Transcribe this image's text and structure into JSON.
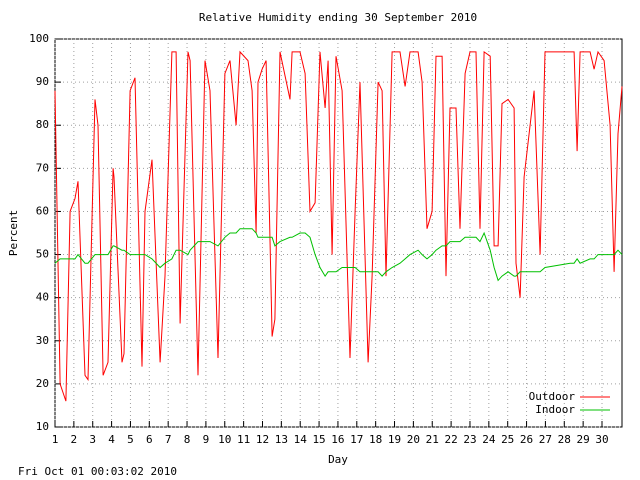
{
  "chart_data": {
    "type": "line",
    "title": "Relative Humidity ending 30 September 2010",
    "x_label": "Day",
    "y_label": "Percent",
    "footer": "Fri Oct 01 00:03:02 2010",
    "xlim": [
      1,
      31.06
    ],
    "ylim": [
      10,
      100
    ],
    "xticks": [
      1,
      2,
      3,
      4,
      5,
      6,
      7,
      8,
      9,
      10,
      11,
      12,
      13,
      14,
      15,
      16,
      17,
      18,
      19,
      20,
      21,
      22,
      23,
      24,
      25,
      26,
      27,
      28,
      29,
      30
    ],
    "yticks": [
      10,
      20,
      30,
      40,
      50,
      60,
      70,
      80,
      90,
      100
    ],
    "grid": true,
    "legend": "bottom-right",
    "x": [
      1.0,
      1.27,
      1.58,
      1.8,
      2.06,
      2.22,
      2.59,
      2.75,
      3.12,
      3.28,
      3.55,
      3.81,
      4.08,
      4.13,
      4.55,
      4.66,
      4.98,
      5.24,
      5.61,
      5.77,
      6.14,
      6.57,
      6.83,
      7.2,
      7.42,
      7.63,
      8.05,
      8.16,
      8.58,
      8.95,
      9.22,
      9.64,
      10.01,
      10.28,
      10.6,
      10.81,
      11.23,
      11.45,
      11.66,
      11.76,
      11.98,
      12.19,
      12.51,
      12.66,
      12.93,
      13.46,
      13.57,
      13.99,
      14.26,
      14.52,
      14.79,
      15.05,
      15.32,
      15.48,
      15.69,
      15.9,
      16.22,
      16.64,
      16.91,
      17.17,
      17.6,
      17.81,
      18.13,
      18.34,
      18.55,
      18.87,
      19.29,
      19.56,
      19.82,
      20.25,
      20.46,
      20.72,
      20.99,
      21.2,
      21.52,
      21.73,
      21.94,
      22.26,
      22.47,
      22.74,
      23.0,
      23.32,
      23.53,
      23.75,
      24.07,
      24.28,
      24.49,
      24.7,
      25.02,
      25.34,
      25.44,
      25.66,
      25.87,
      26.19,
      26.4,
      26.72,
      26.98,
      28.31,
      28.52,
      28.68,
      28.84,
      29.37,
      29.58,
      29.79,
      30.11,
      30.43,
      30.64,
      30.85,
      31.06
    ],
    "series": [
      {
        "name": "Outdoor",
        "color": "#ff0000",
        "values": [
          88,
          20,
          16,
          60,
          63,
          67,
          22,
          21,
          86,
          80,
          22,
          25,
          70,
          68,
          25,
          27,
          88,
          91,
          24,
          60,
          72,
          25,
          45,
          97,
          97,
          34,
          97,
          95,
          22,
          95,
          88,
          26,
          92,
          95,
          80,
          97,
          95,
          88,
          55,
          90,
          93,
          95,
          31,
          35,
          97,
          86,
          97,
          97,
          92,
          60,
          62,
          97,
          84,
          95,
          50,
          96,
          88,
          26,
          60,
          90,
          25,
          45,
          90,
          88,
          45,
          97,
          97,
          89,
          97,
          97,
          90,
          56,
          60,
          96,
          96,
          45,
          84,
          84,
          56,
          92,
          97,
          97,
          56,
          97,
          96,
          52,
          52,
          85,
          86,
          84,
          48,
          40,
          68,
          80,
          88,
          50,
          97,
          97,
          97,
          74,
          97,
          97,
          93,
          97,
          95,
          80,
          46,
          78,
          89
        ]
      },
      {
        "name": "Indoor",
        "color": "#00c000",
        "values": [
          48,
          49,
          49,
          49,
          49,
          50,
          48,
          48,
          50,
          50,
          50,
          50,
          52,
          52,
          51,
          51,
          50,
          50,
          50,
          50,
          49,
          47,
          48,
          49,
          51,
          51,
          50,
          51,
          53,
          53,
          53,
          52,
          54,
          55,
          55,
          56,
          56,
          56,
          55,
          54,
          54,
          54,
          54,
          52,
          53,
          54,
          54,
          55,
          55,
          54,
          50,
          47,
          45,
          46,
          46,
          46,
          47,
          47,
          47,
          46,
          46,
          46,
          46,
          45,
          46,
          47,
          48,
          49,
          50,
          51,
          50,
          49,
          50,
          51,
          52,
          52,
          53,
          53,
          53,
          54,
          54,
          54,
          53,
          55,
          51,
          47,
          44,
          45,
          46,
          45,
          45,
          46,
          46,
          46,
          46,
          46,
          47,
          48,
          48,
          49,
          48,
          49,
          49,
          50,
          50,
          50,
          50,
          51,
          50
        ]
      }
    ]
  }
}
